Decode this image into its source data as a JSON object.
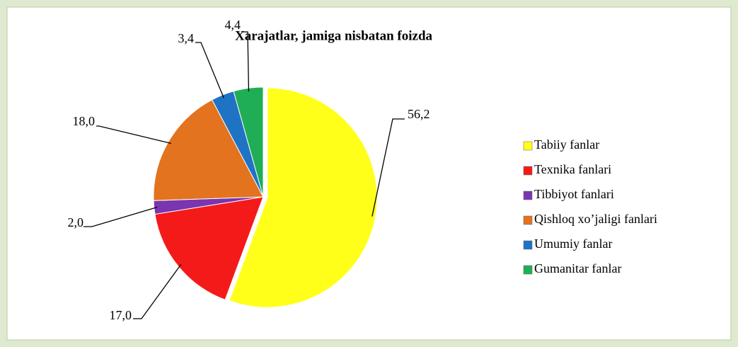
{
  "chart_data": {
    "type": "pie",
    "title": "Xarajatlar, jamiga nisbatan foizda",
    "categories": [
      "Tabiiy fanlar",
      "Texnika fanlari",
      "Tibbiyot fanlari",
      "Qishloq xo’jaligi fanlari",
      "Umumiy fanlar",
      "Gumanitar fanlar"
    ],
    "values": [
      56.2,
      17.0,
      2.0,
      18.0,
      3.4,
      4.4
    ],
    "value_labels": [
      "56,2",
      "17,0",
      "2,0",
      "18,0",
      "3,4",
      "4,4"
    ],
    "colors": [
      "#ffff1a",
      "#f51a1a",
      "#7a35b0",
      "#e3731f",
      "#1f73c4",
      "#1fae55"
    ],
    "legend": "right"
  }
}
